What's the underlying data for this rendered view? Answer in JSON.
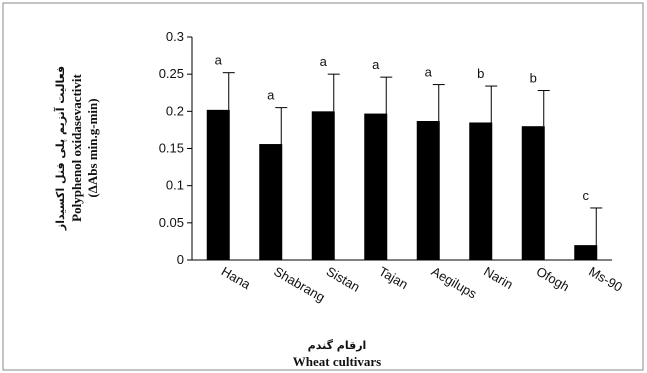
{
  "chart_data": {
    "type": "bar",
    "categories": [
      "Hana",
      "Shabrang",
      "Sistan",
      "Tajan",
      "Aegilups",
      "Narin",
      "Ofogh",
      "Ms-90"
    ],
    "series": [
      {
        "values": [
          0.202,
          0.156,
          0.2,
          0.197,
          0.187,
          0.185,
          0.18,
          0.02
        ],
        "errors": [
          0.05,
          0.049,
          0.05,
          0.049,
          0.049,
          0.049,
          0.048,
          0.05
        ],
        "labels": [
          "a",
          "a",
          "a",
          "a",
          "a",
          "b",
          "b",
          "c"
        ],
        "color": "#000000"
      }
    ],
    "ylim": [
      0,
      0.3
    ],
    "yticks": [
      "0",
      "0.05",
      "0.1",
      "0.15",
      "0.2",
      "0.25",
      "0.3"
    ],
    "ylabel_fa": "فعالیت آنزیم پلی فنل اکسیداز",
    "ylabel": "Polyphenol oxidasevactivit",
    "ylabel_unit": "(ΔAbs min.g-min)",
    "xlabel_fa": "ارقام گندم",
    "xlabel": "Wheat cultivars",
    "grid": false
  }
}
